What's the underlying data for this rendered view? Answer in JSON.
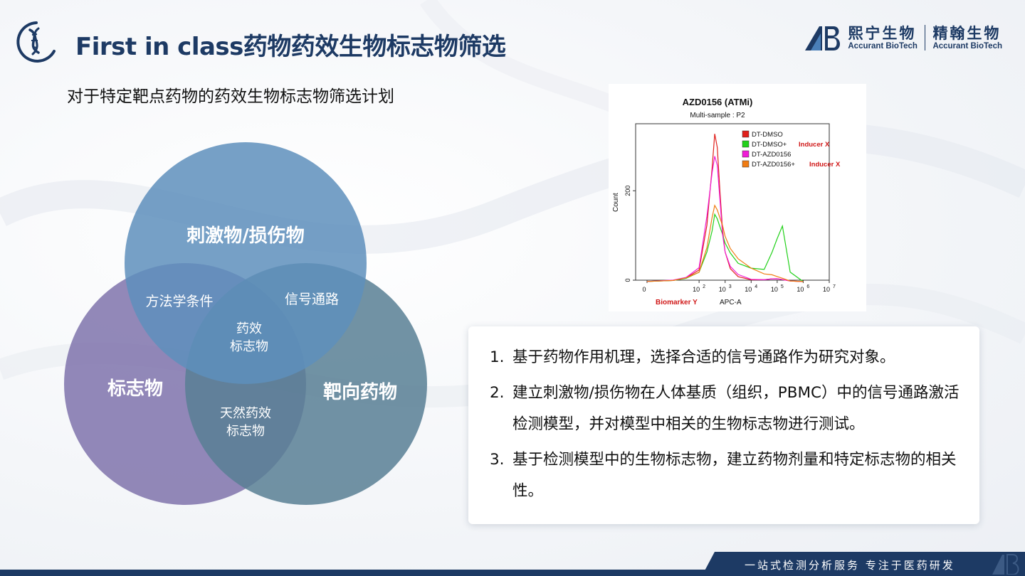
{
  "header": {
    "title": "First in class药物药效生物标志物筛选",
    "brand_cn_1": "熙宁生物",
    "brand_en_1": "Accurant BioTech",
    "brand_cn_2": "精翰生物",
    "brand_en_2": "Accurant BioTech",
    "logo_icon": "dna-helix-logo-icon",
    "brand_icon": "ab-logo-icon"
  },
  "subtitle": "对于特定靶点药物的药效生物标志物筛选计划",
  "venn": {
    "top": "刺激物/损伤物",
    "left": "标志物",
    "right": "靶向药物",
    "top_left": "方法学条件",
    "top_right": "信号通路",
    "bottom": [
      "天然药效",
      "标志物"
    ],
    "center": [
      "药效",
      "标志物"
    ],
    "colors": {
      "top": "#5e8fbc",
      "left": "#7f73ac",
      "right": "#587f94"
    }
  },
  "chart": {
    "title": "AZD0156 (ATMi)",
    "subtitle": "Multi-sample : P2",
    "ylabel": "Count",
    "xlabel_red": "Biomarker  Y",
    "xlabel": "APC-A",
    "y_ticks": [
      "0",
      "200"
    ],
    "x_ticks": [
      "0",
      "10",
      "10",
      "10",
      "10",
      "10",
      "10",
      "10"
    ],
    "x_tick_exponents": [
      "",
      "2",
      "3",
      "4",
      "5",
      "6",
      "7"
    ],
    "legend": [
      {
        "label": "DT-DMSO",
        "suffix": "",
        "color": "#e0201c"
      },
      {
        "label": "DT-DMSO+",
        "suffix": "Inducer X",
        "color": "#22d11a"
      },
      {
        "label": "DT-AZD0156",
        "suffix": "",
        "color": "#f01cd6"
      },
      {
        "label": "DT-AZD0156+",
        "suffix": "Inducer X",
        "color": "#f07c14"
      }
    ]
  },
  "chart_data": {
    "type": "line",
    "title": "AZD0156 (ATMi)",
    "subtitle": "Multi-sample : P2",
    "xlabel": "APC-A",
    "ylabel": "Count",
    "x_scale": "log",
    "xlim": [
      0,
      7
    ],
    "ylim": [
      0,
      350
    ],
    "x": [
      0,
      1,
      1.5,
      2,
      2.3,
      2.5,
      2.6,
      2.7,
      2.8,
      2.9,
      3,
      3.2,
      3.5,
      4,
      4.5,
      4.8,
      5,
      5.2,
      5.5,
      6
    ],
    "series": [
      {
        "name": "DT-DMSO",
        "color": "#e0201c",
        "values": [
          0,
          2,
          5,
          20,
          120,
          250,
          330,
          300,
          200,
          110,
          60,
          25,
          10,
          4,
          2,
          1,
          0,
          0,
          0,
          0
        ]
      },
      {
        "name": "DT-DMSO+ Inducer X",
        "color": "#22d11a",
        "values": [
          0,
          2,
          4,
          15,
          60,
          110,
          150,
          140,
          120,
          100,
          80,
          60,
          40,
          30,
          25,
          60,
          90,
          120,
          20,
          0
        ]
      },
      {
        "name": "DT-AZD0156",
        "color": "#f01cd6",
        "values": [
          0,
          3,
          6,
          25,
          140,
          240,
          280,
          260,
          180,
          100,
          60,
          30,
          15,
          5,
          2,
          1,
          0,
          0,
          0,
          0
        ]
      },
      {
        "name": "DT-AZD0156+ Inducer X",
        "color": "#f07c14",
        "values": [
          0,
          2,
          5,
          15,
          70,
          140,
          170,
          160,
          140,
          120,
          95,
          70,
          50,
          30,
          15,
          10,
          5,
          3,
          0,
          0
        ]
      }
    ]
  },
  "points": [
    {
      "num": "1.",
      "text": "基于药物作用机理，选择合适的信号通路作为研究对象。"
    },
    {
      "num": "2.",
      "text": "建立刺激物/损伤物在人体基质（组织，PBMC）中的信号通路激活检测模型，并对模型中相关的生物标志物进行测试。"
    },
    {
      "num": "3.",
      "text": "基于检测模型中的生物标志物，建立药物剂量和特定标志物的相关性。"
    }
  ],
  "footer": {
    "slogan": "一站式检测分析服务 专注于医药研发"
  }
}
